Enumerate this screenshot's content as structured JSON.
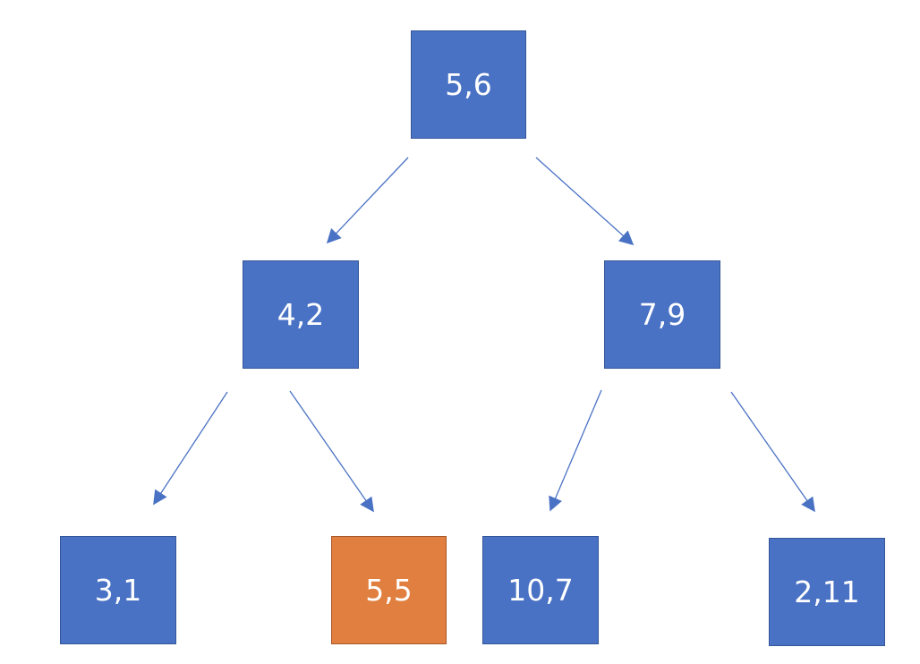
{
  "colors": {
    "node_fill": "#4a72c4",
    "node_border": "#34569a",
    "highlight_fill": "#e07f3f",
    "highlight_border": "#a8582a",
    "edge": "#4a72c4"
  },
  "tree": {
    "root": {
      "label": "5,6"
    },
    "left": {
      "label": "4,2"
    },
    "right": {
      "label": "7,9"
    },
    "left_left": {
      "label": "3,1"
    },
    "left_right": {
      "label": "5,5",
      "highlighted": true
    },
    "right_left": {
      "label": "10,7"
    },
    "right_right": {
      "label": "2,11"
    }
  }
}
